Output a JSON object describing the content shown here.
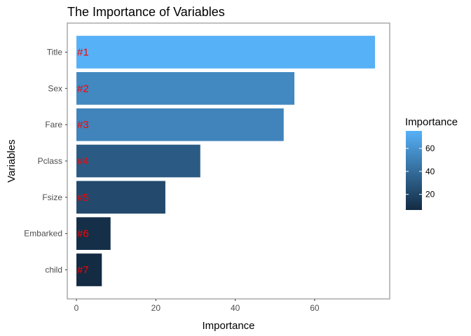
{
  "chart_data": {
    "type": "bar",
    "orientation": "horizontal",
    "title": "The Importance of Variables",
    "xlabel": "Importance",
    "ylabel": "Variables",
    "categories": [
      "Title",
      "Sex",
      "Fare",
      "Pclass",
      "Fsize",
      "Embarked",
      "child"
    ],
    "values": [
      75.2,
      54.9,
      52.2,
      31.2,
      22.4,
      8.6,
      6.4
    ],
    "bar_labels": [
      "#1",
      "#2",
      "#3",
      "#4",
      "#5",
      "#6",
      "#7"
    ],
    "xlim": [
      -2.3,
      78.9
    ],
    "xticks": [
      0,
      20,
      40,
      60
    ],
    "grid": false,
    "legend": {
      "title": "Importance",
      "placement": "right",
      "type": "colorbar",
      "range": [
        6.4,
        75.2
      ],
      "ticks": [
        20,
        40,
        60
      ],
      "color_low": "#132B43",
      "color_high": "#56B1F7"
    },
    "colors": {
      "bar_label": "#ff0000",
      "panel_border": "#7f7f7f",
      "tick_text": "#4d4d4d"
    }
  }
}
